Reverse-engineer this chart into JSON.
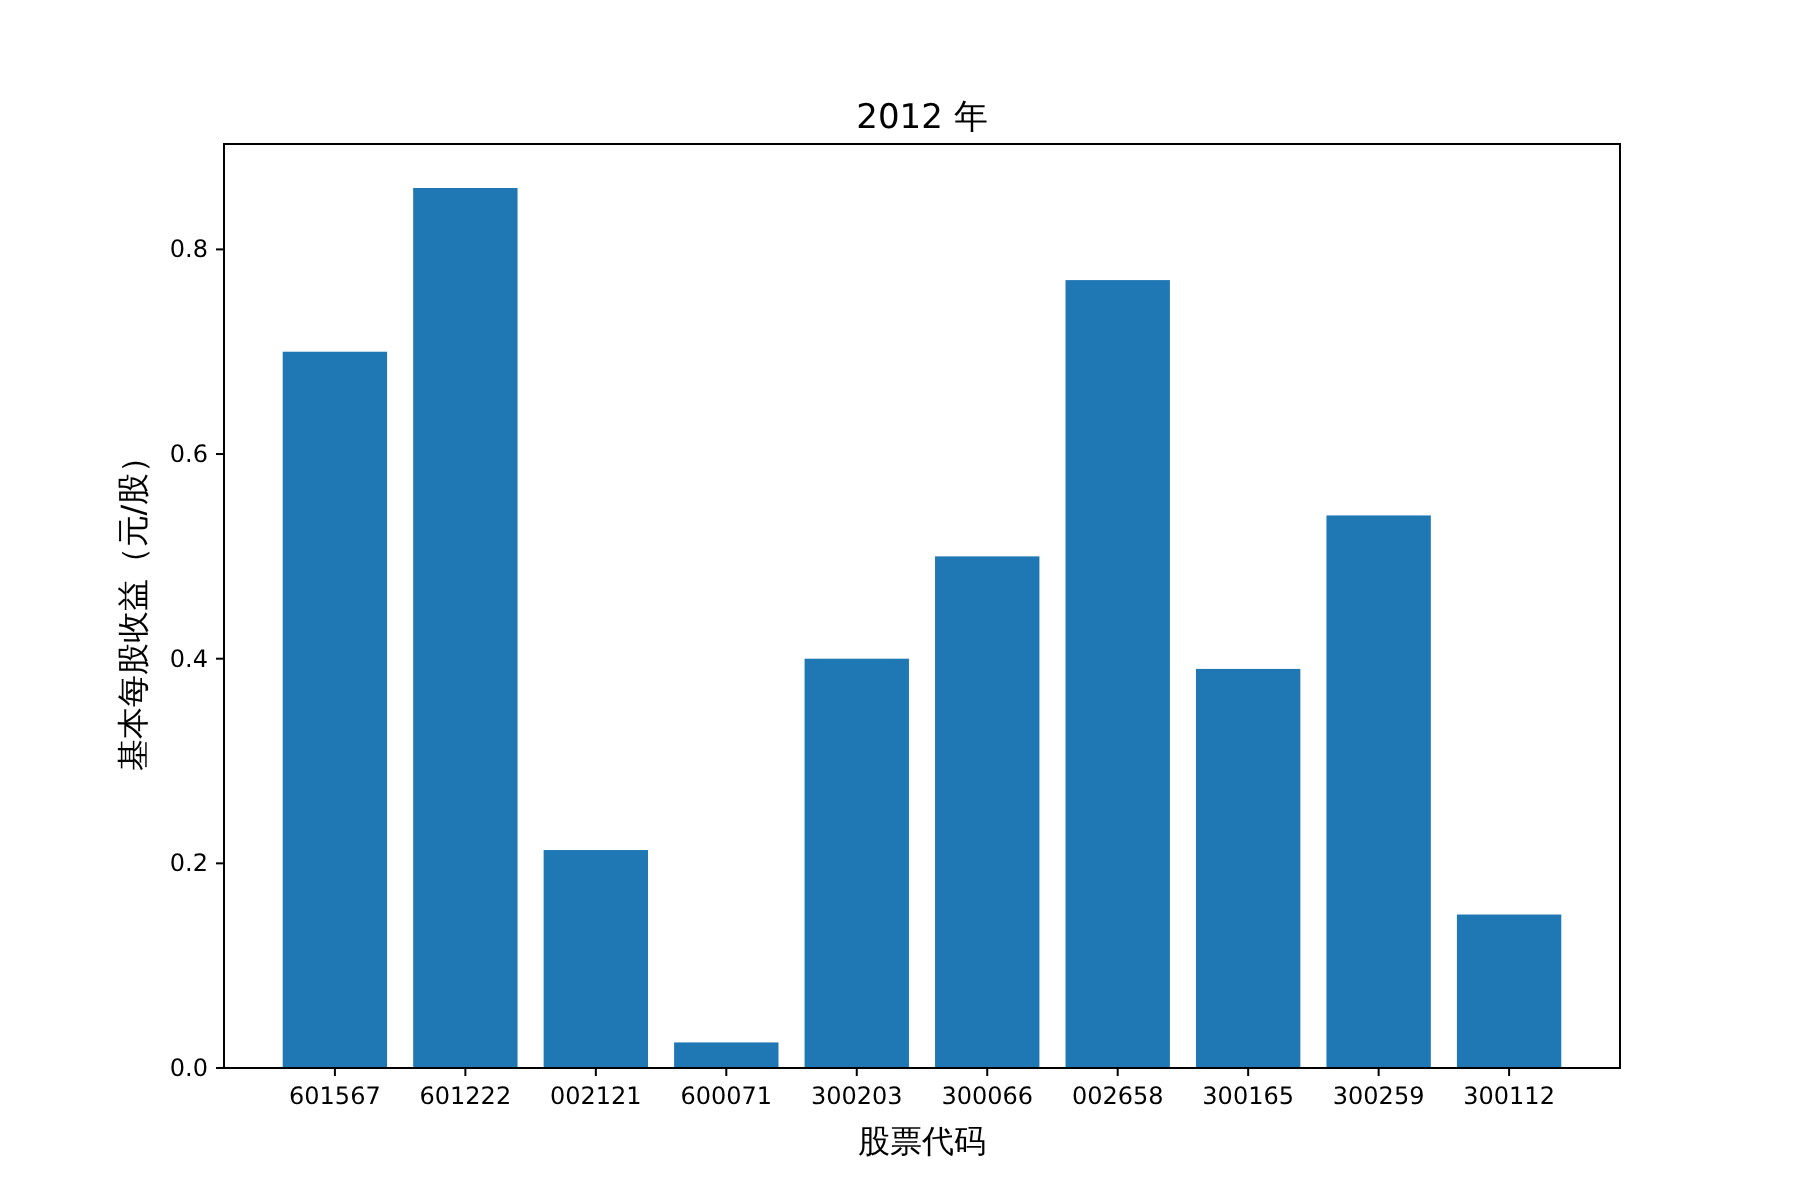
{
  "chart_data": {
    "type": "bar",
    "title": "2012 年",
    "xlabel": "股票代码",
    "ylabel": "基本每股收益（元/股）",
    "categories": [
      "601567",
      "601222",
      "002121",
      "600071",
      "300203",
      "300066",
      "002658",
      "300165",
      "300259",
      "300112"
    ],
    "values": [
      0.7,
      0.86,
      0.213,
      0.025,
      0.4,
      0.5,
      0.77,
      0.39,
      0.54,
      0.15
    ],
    "color": "#1f77b4",
    "ylim": [
      0,
      0.903
    ],
    "yticks": [
      {
        "value": 0,
        "label": "0.0"
      },
      {
        "value": 0.2,
        "label": "0.2"
      },
      {
        "value": 0.4,
        "label": "0.4"
      },
      {
        "value": 0.6,
        "label": "0.6"
      },
      {
        "value": 0.8,
        "label": "0.8"
      }
    ],
    "grid": false
  }
}
